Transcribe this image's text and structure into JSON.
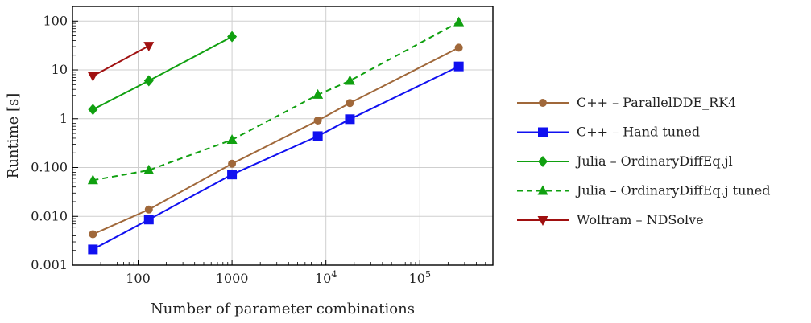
{
  "chart_data": {
    "type": "line",
    "xscale": "log",
    "yscale": "log",
    "xlabel": "Number of parameter combinations",
    "ylabel": "Runtime [s]",
    "xlim": [
      20,
      600000
    ],
    "ylim": [
      0.001,
      200
    ],
    "grid": true,
    "legend_position": "right",
    "x_ticks": [
      {
        "value": 100,
        "label": "100",
        "base": "",
        "exp": ""
      },
      {
        "value": 1000,
        "label": "1000",
        "base": "",
        "exp": ""
      },
      {
        "value": 10000,
        "label": "",
        "base": "10",
        "exp": "4"
      },
      {
        "value": 100000,
        "label": "",
        "base": "10",
        "exp": "5"
      }
    ],
    "y_ticks": [
      {
        "value": 0.001,
        "label": "0.001"
      },
      {
        "value": 0.01,
        "label": "0.010"
      },
      {
        "value": 0.1,
        "label": "0.100"
      },
      {
        "value": 1,
        "label": "1"
      },
      {
        "value": 10,
        "label": "10"
      },
      {
        "value": 100,
        "label": "100"
      }
    ],
    "series": [
      {
        "name": "C++ – ParallelDDE_RK4",
        "color": "#a0683a",
        "marker": "circle",
        "dash": "solid",
        "points": [
          [
            33,
            0.0043
          ],
          [
            130,
            0.0138
          ],
          [
            1000,
            0.12
          ],
          [
            8200,
            0.92
          ],
          [
            18000,
            2.1
          ],
          [
            260000,
            28.5
          ]
        ]
      },
      {
        "name": "C++ – Hand tuned",
        "color": "#1010f0",
        "marker": "square",
        "dash": "solid",
        "points": [
          [
            33,
            0.0021
          ],
          [
            130,
            0.0086
          ],
          [
            1000,
            0.072
          ],
          [
            8200,
            0.44
          ],
          [
            18000,
            0.98
          ],
          [
            260000,
            11.8
          ]
        ]
      },
      {
        "name": "Julia – OrdinaryDiffEq.jl",
        "color": "#10a010",
        "marker": "diamond",
        "dash": "solid",
        "points": [
          [
            33,
            1.55
          ],
          [
            130,
            6.0
          ],
          [
            1000,
            48
          ]
        ]
      },
      {
        "name": "Julia – OrdinaryDiffEq.j tuned",
        "color": "#10a010",
        "marker": "triangle-up",
        "dash": "dashed",
        "points": [
          [
            33,
            0.055
          ],
          [
            130,
            0.088
          ],
          [
            1000,
            0.37
          ],
          [
            8200,
            3.1
          ],
          [
            18000,
            6.0
          ],
          [
            260000,
            95
          ]
        ]
      },
      {
        "name": "Wolfram – NDSolve",
        "color": "#a01010",
        "marker": "triangle-down",
        "dash": "solid",
        "points": [
          [
            33,
            7.5
          ],
          [
            130,
            31
          ]
        ]
      }
    ]
  }
}
